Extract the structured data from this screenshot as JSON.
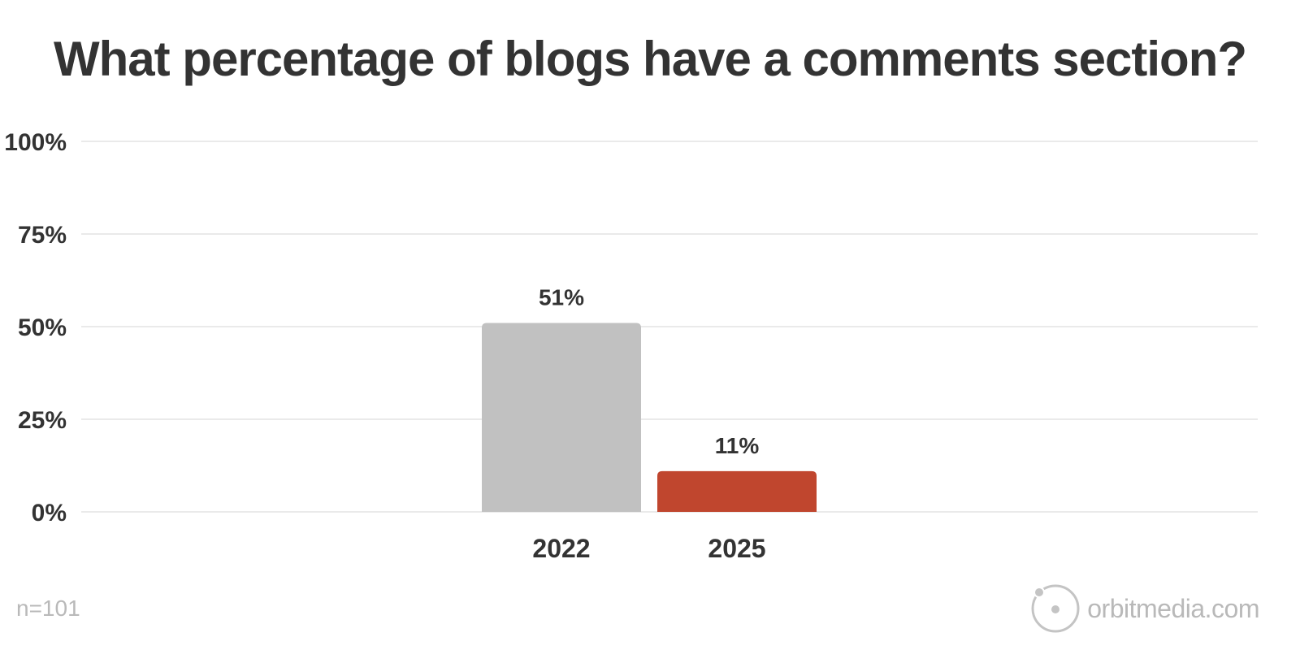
{
  "chart_data": {
    "type": "bar",
    "title": "What percentage of blogs have a comments section?",
    "categories": [
      "2022",
      "2025"
    ],
    "values": [
      51,
      11
    ],
    "data_labels": [
      "51%",
      "11%"
    ],
    "colors": [
      "#c1c1c1",
      "#c0462e"
    ],
    "ylim": [
      0,
      100
    ],
    "yticks": [
      0,
      25,
      50,
      75,
      100
    ],
    "ytick_labels": [
      "0%",
      "25%",
      "50%",
      "75%",
      "100%"
    ],
    "xlabel": "",
    "ylabel": "",
    "grid": true
  },
  "footnote": "n=101",
  "brand": {
    "name": "orbitmedia.com",
    "logo_icon": "orbit-logo-icon",
    "color": "#b9b9b9"
  }
}
